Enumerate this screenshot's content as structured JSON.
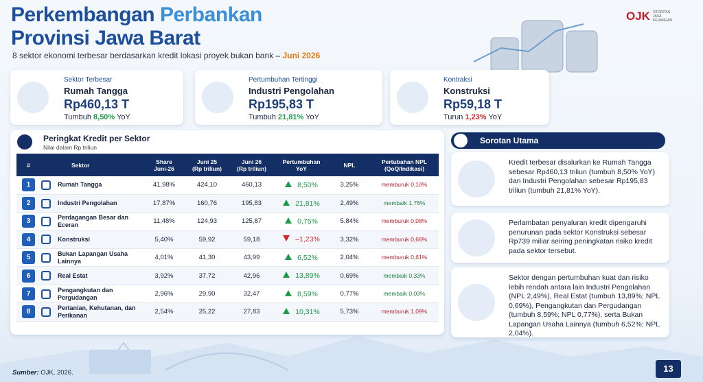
{
  "header": {
    "title_1a": "Perkembangan",
    "title_1b": "Perbankan",
    "title_2": "Provinsi Jawa Barat",
    "subtitle": "8 sektor ekonomi terbesar berdasarkan kredit lokasi proyek bukan bank –",
    "period": "Juni 2026"
  },
  "logo": {
    "mark": "OJK",
    "name_lines": [
      "OTORITAS",
      "JASA",
      "KEUANGAN"
    ]
  },
  "cards": [
    {
      "label": "Sektor Terbesar",
      "sector": "Rumah Tangga",
      "value": "Rp460,13 T",
      "trend_word": "Tumbuh",
      "growth": "8,50%",
      "unit": "YoY"
    },
    {
      "label": "Pertumbuhan Tertinggi",
      "sector": "Industri Pengolahan",
      "value": "Rp195,83 T",
      "trend_word": "Tumbuh",
      "growth": "21,81%",
      "unit": "YoY"
    },
    {
      "label": "Kontraksi",
      "sector": "Konstruksi",
      "value": "Rp59,18 T",
      "trend_word": "Turun",
      "growth": "1,23%",
      "unit": "YoY"
    }
  ],
  "table": {
    "title": "Peringkat Kredit per Sektor",
    "note": "Nilai dalam Rp triliun",
    "headers": [
      [
        "#"
      ],
      [
        "Sektor"
      ],
      [
        "Share",
        "Juni-26"
      ],
      [
        "Juni 25",
        "(Rp triliun)"
      ],
      [
        "Juni 26",
        "(Rp triliun)"
      ],
      [
        "Pertumbuhan",
        "YoY"
      ],
      [
        "NPL"
      ],
      [
        "Pertubahan NPL",
        "(QoQ/Indikasi)"
      ]
    ],
    "rows": [
      [
        "1",
        "Rumah Tangga",
        "41,98%",
        "424,10",
        "460,13",
        "8,50%",
        "3,25%",
        "memburuk 0,10%"
      ],
      [
        "2",
        "Industri Pengolahan",
        "17,87%",
        "160,76",
        "195,83",
        "21,81%",
        "2,49%",
        "membaik 1,76%"
      ],
      [
        "3",
        "Perdagangan Besar dan Eceran",
        "11,48%",
        "124,93",
        "125,87",
        "0,75%",
        "5,84%",
        "memburuk 0,08%"
      ],
      [
        "4",
        "Konstruksi",
        "5,40%",
        "59,92",
        "59,18",
        "–1,23%",
        "3,32%",
        "memburuk 0,66%"
      ],
      [
        "5",
        "Bukan Lapangan Usaha Lainnya",
        "4,01%",
        "41,30",
        "43,99",
        "6,52%",
        "2,04%",
        "memburuk 0,61%"
      ],
      [
        "6",
        "Real Estat",
        "3,92%",
        "37,72",
        "42,96",
        "13,89%",
        "0,69%",
        "membaik 0,33%"
      ],
      [
        "7",
        "Pengangkutan dan Pergudangan",
        "2,96%",
        "29,90",
        "32,47",
        "8,59%",
        "0,77%",
        "membaik 0,03%"
      ],
      [
        "8",
        "Pertanian, Kehutanan, dan Perikanan",
        "2,54%",
        "25,22",
        "27,83",
        "10,31%",
        "5,73%",
        "memburuk 1,09%"
      ]
    ]
  },
  "highlights": {
    "title": "Sorotan Utama",
    "items": [
      "Kredit terbesar disalurkan ke Rumah Tangga sebesar Rp460,13 triliun (tumbuh 8,50% YoY) dan Industri Pengolahan sebesar Rp195,83 triliun (tumbuh 21,81% YoY).",
      "Perlambatan penyaluran kredit dipengaruhi penurunan pada sektor Konstruksi sebesar Rp739 miliar seiring peningkatan risiko kredit pada sektor tersebut.",
      "Sektor dengan pertumbuhan kuat dan risiko lebih rendah antara lain Industri Pengolahan (NPL 2,49%), Real Estat (tumbuh 13,89%; NPL 0,69%), Pengangkutan dan Pergudangan (tumbuh 8,59%; NPL 0,77%), serta Bukan Lapangan Usaha Lainnya (tumbuh 6,52%; NPL 2,04%)."
    ]
  },
  "footer": {
    "source_label": "Sumber:",
    "source": "OJK, 2026.",
    "page": "13"
  }
}
